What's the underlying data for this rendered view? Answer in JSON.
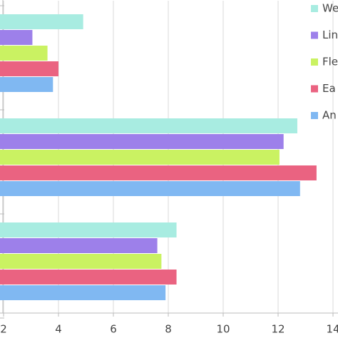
{
  "chart_data": {
    "type": "barh",
    "categories": [
      null,
      null,
      null
    ],
    "series": [
      {
        "name": "We",
        "color": "#a8ece1",
        "values": [
          4.9,
          12.7,
          8.3
        ]
      },
      {
        "name": "Lin",
        "color": "#9d80ea",
        "values": [
          3.05,
          12.2,
          7.6
        ]
      },
      {
        "name": "Fle",
        "color": "#caf262",
        "values": [
          3.6,
          12.05,
          7.75
        ]
      },
      {
        "name": "Ea",
        "color": "#ea6381",
        "values": [
          4.0,
          13.4,
          8.3
        ]
      },
      {
        "name": "An",
        "color": "#80b8f2",
        "values": [
          3.8,
          12.8,
          7.9
        ]
      }
    ],
    "xlim": [
      0,
      14
    ],
    "xticks": [
      2,
      4,
      6,
      8,
      10,
      12,
      14
    ],
    "grid": true,
    "legend": "right"
  }
}
